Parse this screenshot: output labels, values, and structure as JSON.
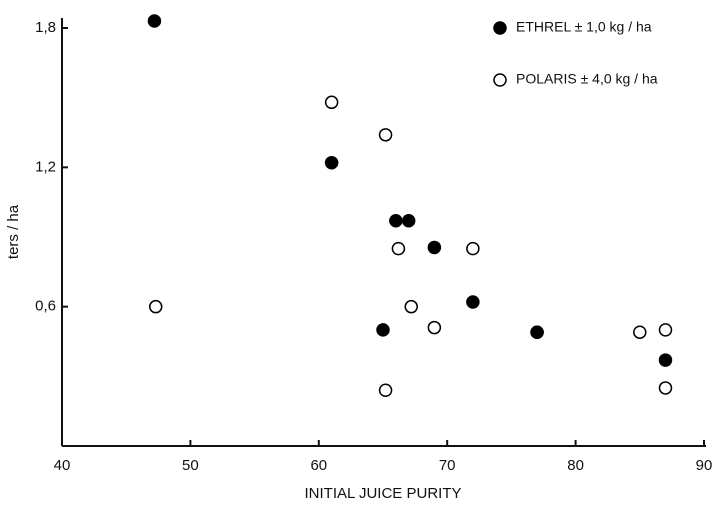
{
  "chart_data": {
    "type": "scatter",
    "xlabel": "INITIAL JUICE PURITY",
    "ylabel": "ters / ha",
    "xlim": [
      40,
      90
    ],
    "xticks": [
      40,
      50,
      60,
      70,
      80,
      90
    ],
    "ylim": [
      0,
      1.8
    ],
    "yticks": [
      {
        "value": 0.6,
        "label": "0,6"
      },
      {
        "value": 1.2,
        "label": "1,2"
      },
      {
        "value": 1.8,
        "label": "1,8"
      }
    ],
    "legend": "top-right",
    "series": [
      {
        "name": "ETHREL ± 1,0 kg / ha",
        "color": "#000000",
        "filled": true,
        "x": [
          47.2,
          61,
          66,
          67,
          69,
          72,
          65,
          77,
          87
        ],
        "values": [
          1.83,
          1.22,
          0.97,
          0.97,
          0.855,
          0.62,
          0.5,
          0.49,
          0.37
        ]
      },
      {
        "name": "POLARIS ± 4,0 kg / ha",
        "color": "#000000",
        "filled": false,
        "x": [
          47.3,
          61,
          65.2,
          66.2,
          72,
          67.2,
          69,
          77,
          85,
          87,
          65.2,
          87
        ],
        "values": [
          0.6,
          1.48,
          1.34,
          0.85,
          0.85,
          0.6,
          0.51,
          0.49,
          0.49,
          0.5,
          0.24,
          0.25
        ]
      }
    ]
  }
}
